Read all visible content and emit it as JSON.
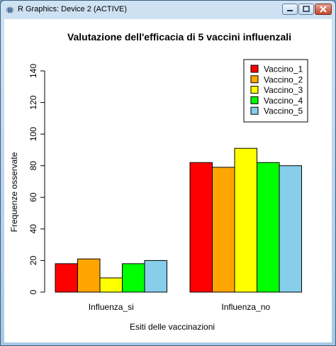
{
  "window": {
    "title": "R Graphics: Device 2 (ACTIVE)",
    "icon": "r-logo-icon",
    "controls": [
      "minimize-icon",
      "maximize-icon",
      "close-icon"
    ]
  },
  "chart_data": {
    "type": "bar",
    "title": "Valutazione dell'efficacia di 5 vaccini influenzali",
    "xlabel": "Esiti delle vaccinazioni",
    "ylabel": "Frequenze osservate",
    "categories": [
      "Influenza_si",
      "Influenza_no"
    ],
    "series": [
      {
        "name": "Vaccino_1",
        "color": "#ff0000",
        "values": [
          18,
          82
        ]
      },
      {
        "name": "Vaccino_2",
        "color": "#ffa500",
        "values": [
          21,
          79
        ]
      },
      {
        "name": "Vaccino_3",
        "color": "#ffff00",
        "values": [
          9,
          91
        ]
      },
      {
        "name": "Vaccino_4",
        "color": "#00ff00",
        "values": [
          18,
          82
        ]
      },
      {
        "name": "Vaccino_5",
        "color": "#87ceeb",
        "values": [
          20,
          80
        ]
      }
    ],
    "ylim": [
      0,
      140
    ],
    "yticks": [
      "0",
      "20",
      "40",
      "60",
      "80",
      "100",
      "120",
      "140"
    ],
    "legend_position": "top-right",
    "grid": false
  }
}
